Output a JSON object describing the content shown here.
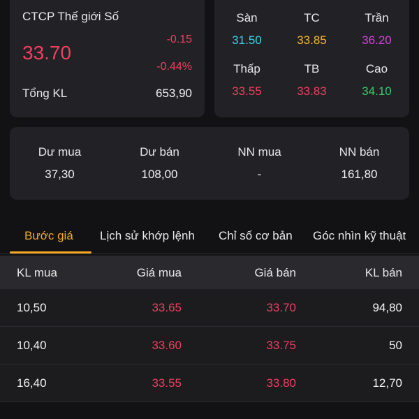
{
  "quote": {
    "company": "CTCP Thế giới Số",
    "price": "33.70",
    "change": "-0.15",
    "change_pct": "-0.44%",
    "volume_label": "Tổng KL",
    "volume_value": "653,90"
  },
  "reference": [
    {
      "label": "Sàn",
      "value": "31.50",
      "color": "#3fd0e8"
    },
    {
      "label": "TC",
      "value": "33.85",
      "color": "#f5b72a"
    },
    {
      "label": "Trần",
      "value": "36.20",
      "color": "#d63fe0"
    },
    {
      "label": "Thấp",
      "value": "33.55",
      "color": "#ef3f5e"
    },
    {
      "label": "TB",
      "value": "33.83",
      "color": "#ef3f5e"
    },
    {
      "label": "Cao",
      "value": "34.10",
      "color": "#33c96a"
    }
  ],
  "stats": [
    {
      "label": "Dư mua",
      "value": "37,30"
    },
    {
      "label": "Dư bán",
      "value": "108,00"
    },
    {
      "label": "NN mua",
      "value": "-"
    },
    {
      "label": "NN bán",
      "value": "161,80"
    }
  ],
  "tabs": [
    {
      "label": "Bước giá",
      "active": true
    },
    {
      "label": "Lịch sử khớp lệnh",
      "active": false
    },
    {
      "label": "Chỉ số cơ bản",
      "active": false
    },
    {
      "label": "Góc nhìn kỹ thuật",
      "active": false
    }
  ],
  "order_book": {
    "headers": [
      "KL mua",
      "Giá mua",
      "Giá bán",
      "KL bán"
    ],
    "rows": [
      {
        "bid_vol": "10,50",
        "bid_price": "33.65",
        "ask_price": "33.70",
        "ask_vol": "94,80"
      },
      {
        "bid_vol": "10,40",
        "bid_price": "33.60",
        "ask_price": "33.75",
        "ask_vol": "50"
      },
      {
        "bid_vol": "16,40",
        "bid_price": "33.55",
        "ask_price": "33.80",
        "ask_vol": "12,70"
      }
    ]
  },
  "colors": {
    "accent": "#f5a623",
    "down": "#ef3f5e",
    "background": "#121214",
    "card": "#222226"
  }
}
